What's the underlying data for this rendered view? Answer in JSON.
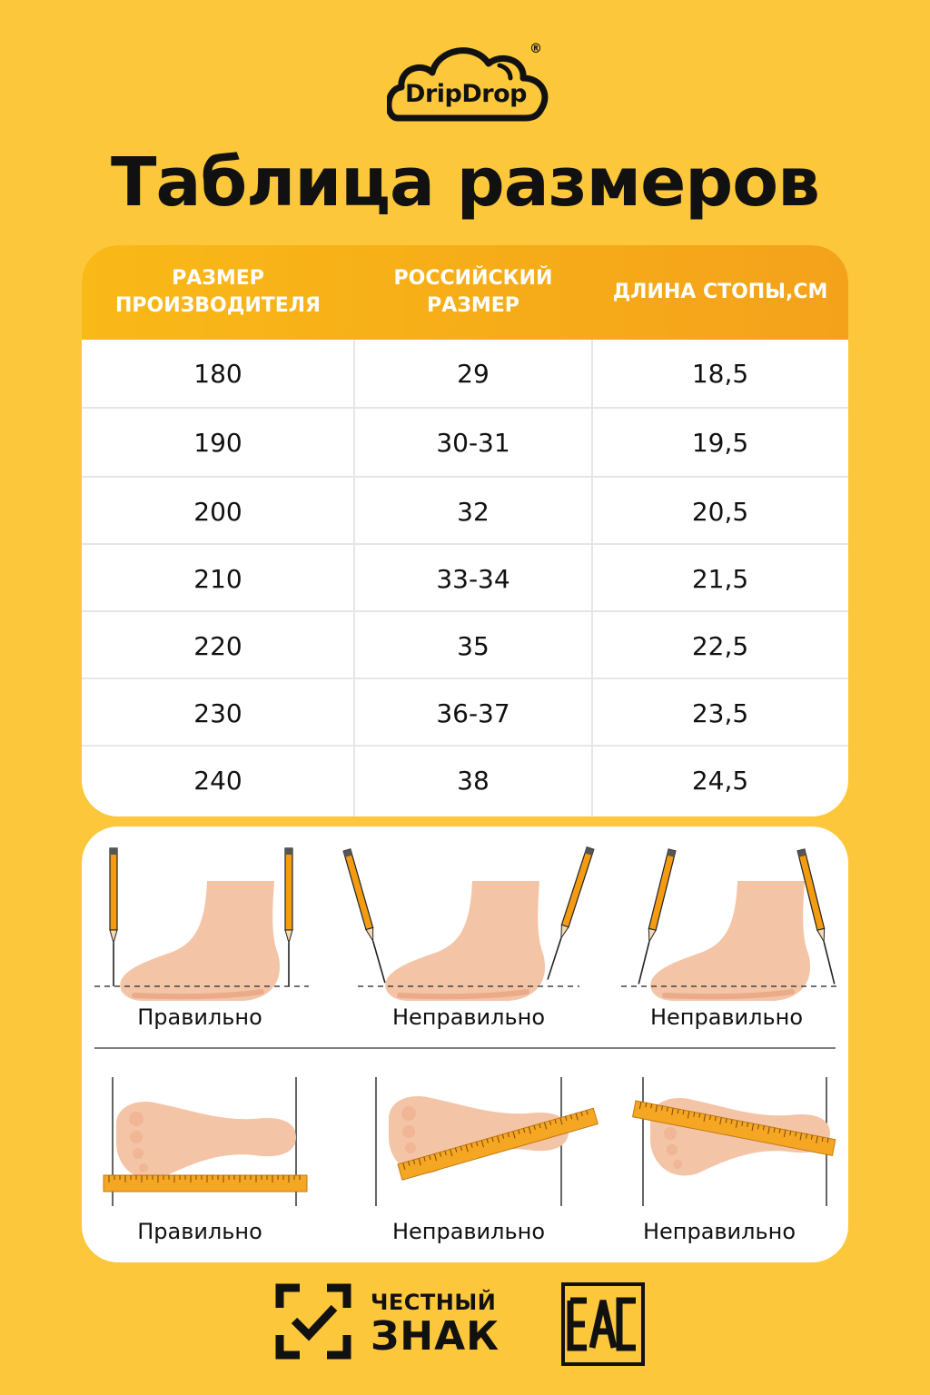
{
  "brand": {
    "name": "DripDrop",
    "registered": "®"
  },
  "title": "Таблица размеров",
  "table": {
    "headers": [
      "РАЗМЕР ПРОИЗВОДИТЕЛЯ",
      "РОССИЙСКИЙ РАЗМЕР",
      "ДЛИНА СТОПЫ,СМ"
    ],
    "rows": [
      [
        "180",
        "29",
        "18,5"
      ],
      [
        "190",
        "30-31",
        "19,5"
      ],
      [
        "200",
        "32",
        "20,5"
      ],
      [
        "210",
        "33-34",
        "21,5"
      ],
      [
        "220",
        "35",
        "22,5"
      ],
      [
        "230",
        "36-37",
        "23,5"
      ],
      [
        "240",
        "38",
        "24,5"
      ]
    ]
  },
  "guide": {
    "side_view": [
      "Правильно",
      "Неправильно",
      "Неправильно"
    ],
    "top_view": [
      "Правильно",
      "Неправильно",
      "Неправильно"
    ]
  },
  "footer": {
    "chestny_line1": "ЧЕСТНЫЙ",
    "chestny_line2": "ЗНАК",
    "eac": "EAC"
  },
  "colors": {
    "background": "#fcc73a",
    "header_gradient_start": "#f9b917",
    "header_gradient_end": "#f4a21a",
    "skin": "#f4c4a6"
  }
}
